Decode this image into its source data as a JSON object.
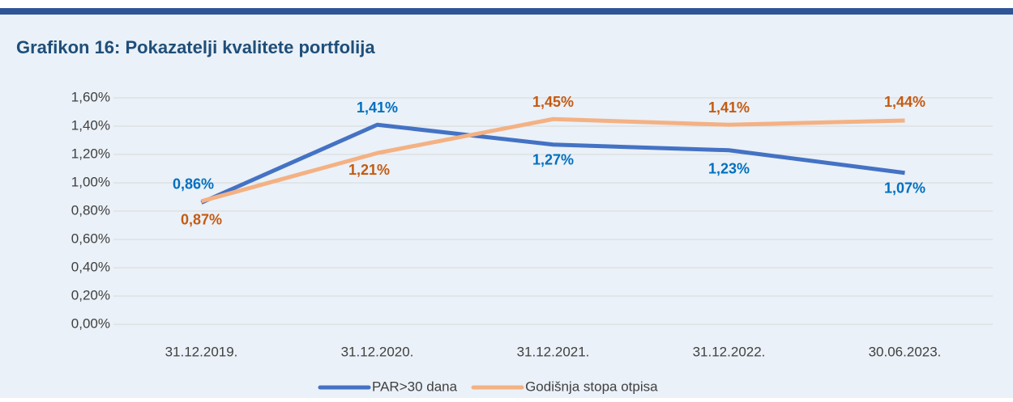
{
  "chart_data": {
    "type": "line",
    "title": "Grafikon 16: Pokazatelji kvalitete portfolija",
    "categories": [
      "31.12.2019.",
      "31.12.2020.",
      "31.12.2021.",
      "31.12.2022.",
      "30.06.2023."
    ],
    "series": [
      {
        "name": "PAR>30 dana",
        "color": "#4472c4",
        "label_color": "#0070c0",
        "values": [
          0.86,
          1.41,
          1.27,
          1.23,
          1.07
        ],
        "value_labels": [
          "0,86%",
          "1,41%",
          "1,27%",
          "1,23%",
          "1,07%"
        ]
      },
      {
        "name": "Godišnja stopa otpisa",
        "color": "#f4b183",
        "label_color": "#c55a11",
        "values": [
          0.87,
          1.21,
          1.45,
          1.41,
          1.44
        ],
        "value_labels": [
          "0,87%",
          "1,21%",
          "1,45%",
          "1,41%",
          "1,44%"
        ]
      }
    ],
    "ylim": [
      0,
      1.6
    ],
    "yticks": [
      {
        "value": 0,
        "label": "0,00%"
      },
      {
        "value": 0.2,
        "label": "0,20%"
      },
      {
        "value": 0.4,
        "label": "0,40%"
      },
      {
        "value": 0.6,
        "label": "0,60%"
      },
      {
        "value": 0.8,
        "label": "0,80%"
      },
      {
        "value": 1.0,
        "label": "1,00%"
      },
      {
        "value": 1.2,
        "label": "1,20%"
      },
      {
        "value": 1.4,
        "label": "1,40%"
      },
      {
        "value": 1.6,
        "label": "1,60%"
      }
    ],
    "grid": true,
    "legend": "bottom"
  }
}
